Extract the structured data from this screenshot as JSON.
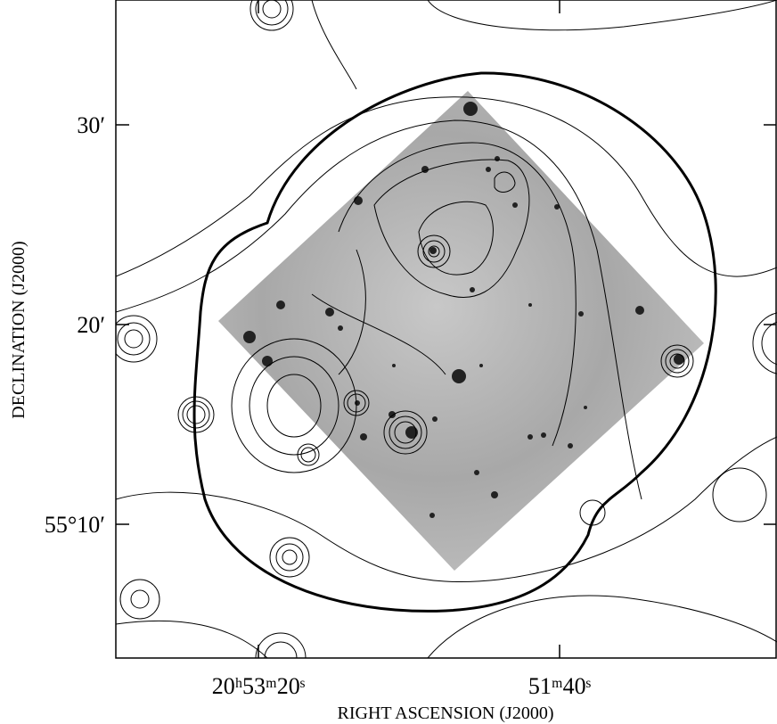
{
  "axes": {
    "x_label": "RIGHT ASCENSION (J2000)",
    "y_label": "DECLINATION (J2000)",
    "x_ticks": [
      "20ʰ53ᵐ20ˢ",
      "51ᵐ40ˢ"
    ],
    "y_ticks": [
      "30′",
      "20′",
      "55°10′"
    ]
  }
}
